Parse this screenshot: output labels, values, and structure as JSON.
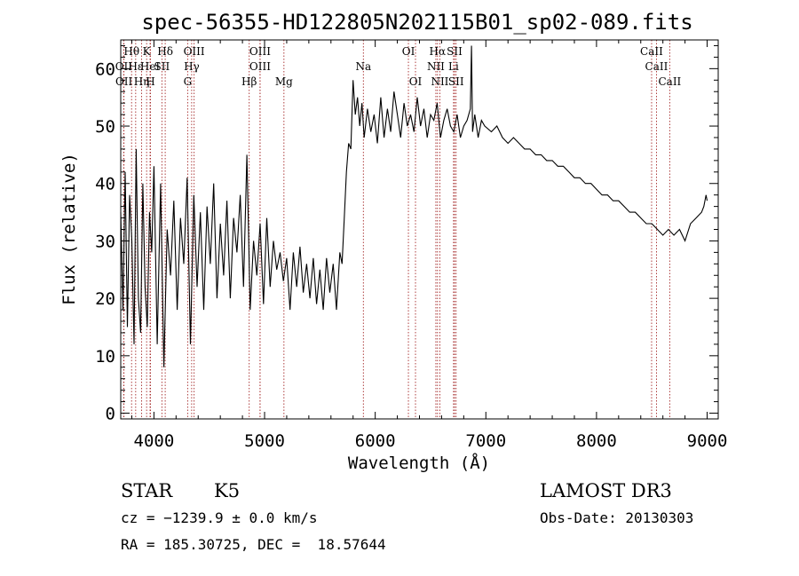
{
  "chart_data": {
    "type": "line",
    "title": "spec-56355-HD122805N202115B01_sp02-089.fits",
    "xlabel": "Wavelength (Å)",
    "ylabel": "Flux (relative)",
    "xlim": [
      3700,
      9100
    ],
    "ylim": [
      -1,
      65
    ],
    "x_ticks": [
      4000,
      5000,
      6000,
      7000,
      8000,
      9000
    ],
    "y_ticks": [
      0,
      10,
      20,
      30,
      40,
      50,
      60
    ],
    "grid": false,
    "series": [
      {
        "x": [
          3700,
          3720,
          3740,
          3760,
          3780,
          3800,
          3820,
          3840,
          3860,
          3880,
          3900,
          3920,
          3940,
          3960,
          3980,
          4000,
          4030,
          4060,
          4090,
          4120,
          4150,
          4180,
          4210,
          4240,
          4270,
          4300,
          4330,
          4360,
          4390,
          4420,
          4450,
          4480,
          4510,
          4540,
          4570,
          4600,
          4630,
          4660,
          4690,
          4720,
          4750,
          4780,
          4810,
          4840,
          4870,
          4900,
          4930,
          4960,
          4990,
          5020,
          5050,
          5080,
          5110,
          5140,
          5170,
          5200,
          5230,
          5260,
          5290,
          5320,
          5350,
          5380,
          5410,
          5440,
          5470,
          5500,
          5530,
          5560,
          5590,
          5620,
          5650,
          5680,
          5700,
          5720,
          5740,
          5760,
          5780,
          5800,
          5820,
          5840,
          5860,
          5880,
          5900,
          5930,
          5960,
          5990,
          6020,
          6050,
          6080,
          6110,
          6140,
          6170,
          6200,
          6230,
          6260,
          6290,
          6320,
          6350,
          6380,
          6410,
          6440,
          6470,
          6500,
          6530,
          6560,
          6590,
          6620,
          6650,
          6680,
          6710,
          6740,
          6770,
          6800,
          6830,
          6860,
          6870,
          6880,
          6900,
          6930,
          6960,
          6990,
          7050,
          7100,
          7150,
          7200,
          7250,
          7300,
          7350,
          7400,
          7450,
          7500,
          7550,
          7600,
          7650,
          7700,
          7750,
          7800,
          7850,
          7900,
          7950,
          8000,
          8050,
          8100,
          8150,
          8200,
          8250,
          8300,
          8350,
          8400,
          8450,
          8500,
          8550,
          8600,
          8650,
          8700,
          8750,
          8800,
          8850,
          8900,
          8950,
          8970,
          8990,
          9000
        ],
        "y": [
          35,
          18,
          42,
          15,
          38,
          30,
          12,
          46,
          20,
          14,
          40,
          22,
          15,
          35,
          28,
          43,
          12,
          40,
          8,
          32,
          24,
          37,
          18,
          34,
          26,
          41,
          12,
          38,
          22,
          35,
          18,
          36,
          26,
          40,
          20,
          33,
          24,
          37,
          20,
          34,
          28,
          38,
          22,
          45,
          18,
          30,
          24,
          33,
          19,
          34,
          22,
          30,
          25,
          28,
          23,
          27,
          18,
          28,
          22,
          29,
          21,
          26,
          20,
          27,
          19,
          25,
          18,
          27,
          21,
          26,
          18,
          28,
          26,
          34,
          42,
          47,
          46,
          58,
          52,
          55,
          50,
          54,
          48,
          53,
          49,
          52,
          47,
          55,
          48,
          53,
          49,
          56,
          52,
          48,
          54,
          50,
          52,
          49,
          55,
          50,
          53,
          48,
          52,
          51,
          54,
          48,
          51,
          53,
          50,
          49,
          52,
          48,
          50,
          51,
          53,
          64,
          49,
          52,
          48,
          51,
          50,
          49,
          50,
          48,
          47,
          48,
          47,
          46,
          46,
          45,
          45,
          44,
          44,
          43,
          43,
          42,
          41,
          41,
          40,
          40,
          39,
          38,
          38,
          37,
          37,
          36,
          35,
          35,
          34,
          33,
          33,
          32,
          31,
          32,
          31,
          32,
          30,
          33,
          34,
          35,
          36,
          38,
          37
        ]
      }
    ],
    "line_markers": [
      {
        "label": "Hθ",
        "x": 3798,
        "row": 0
      },
      {
        "label": "OII",
        "x": 3727,
        "row": 1
      },
      {
        "label": "OII",
        "x": 3729,
        "row": 2
      },
      {
        "label": "Hε",
        "x": 3835,
        "row": 1
      },
      {
        "label": "Hη",
        "x": 3889,
        "row": 2
      },
      {
        "label": "K",
        "x": 3934,
        "row": 0
      },
      {
        "label": "HeI",
        "x": 3965,
        "row": 1
      },
      {
        "label": "H",
        "x": 3969,
        "row": 2
      },
      {
        "label": "SII",
        "x": 4072,
        "row": 1
      },
      {
        "label": "Hδ",
        "x": 4102,
        "row": 0
      },
      {
        "label": "OIII",
        "x": 4363,
        "row": 0
      },
      {
        "label": "Hγ",
        "x": 4341,
        "row": 1
      },
      {
        "label": "G",
        "x": 4305,
        "row": 2
      },
      {
        "label": "OIII",
        "x": 4959,
        "row": 0
      },
      {
        "label": "OIII",
        "x": 4959,
        "row": 1
      },
      {
        "label": "Hβ",
        "x": 4861,
        "row": 2
      },
      {
        "label": "Mg",
        "x": 5175,
        "row": 2
      },
      {
        "label": "Na",
        "x": 5893,
        "row": 1
      },
      {
        "label": "OI",
        "x": 6300,
        "row": 0
      },
      {
        "label": "OI",
        "x": 6364,
        "row": 2
      },
      {
        "label": "Hα",
        "x": 6563,
        "row": 0
      },
      {
        "label": "NII",
        "x": 6548,
        "row": 1
      },
      {
        "label": "NII",
        "x": 6584,
        "row": 2
      },
      {
        "label": "SII",
        "x": 6717,
        "row": 0
      },
      {
        "label": "Li",
        "x": 6708,
        "row": 1
      },
      {
        "label": "SII",
        "x": 6731,
        "row": 2
      },
      {
        "label": "CaII",
        "x": 8498,
        "row": 0
      },
      {
        "label": "CaII",
        "x": 8542,
        "row": 1
      },
      {
        "label": "CaII",
        "x": 8662,
        "row": 2
      }
    ],
    "marker_color": "#a52a2a"
  },
  "info": {
    "object_type": "STAR",
    "subclass": "K5",
    "survey": "LAMOST DR3",
    "cz": "cz = −1239.9 ± 0.0 km/s",
    "obs_date": "Obs-Date: 20130303",
    "coords": "RA = 185.30725, DEC =  18.57644"
  }
}
